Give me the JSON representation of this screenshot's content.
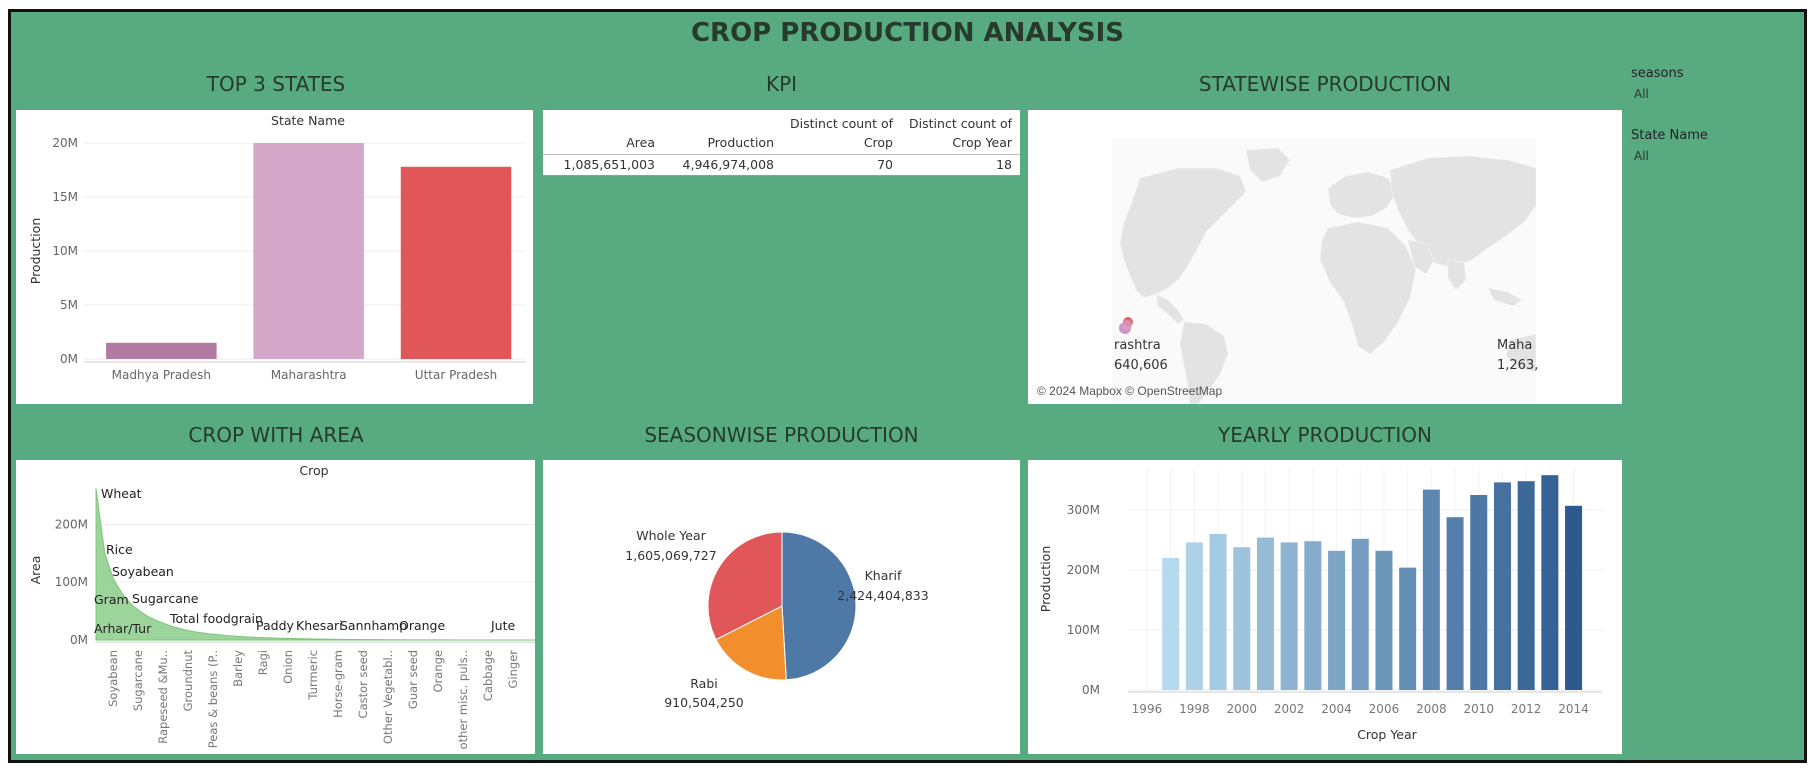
{
  "dashboard": {
    "title": "CROP PRODUCTION ANALYSIS",
    "sections": {
      "top_states": "TOP 3 STATES",
      "kpi": "KPI",
      "statewise": "STATEWISE PRODUCTION",
      "crop_area": "CROP WITH AREA",
      "seasonwise": "SEASONWISE PRODUCTION",
      "yearly": "YEARLY PRODUCTION"
    }
  },
  "filters": {
    "seasons": {
      "label": "seasons",
      "value": "All"
    },
    "state_name": {
      "label": "State Name",
      "value": "All"
    }
  },
  "kpi": {
    "headers": [
      "Area",
      "Production",
      "Distinct count of Crop",
      "Distinct count of Crop Year"
    ],
    "header_lines": [
      [
        "",
        "Area"
      ],
      [
        "",
        "Production"
      ],
      [
        "Distinct count of",
        "Crop"
      ],
      [
        "Distinct count of",
        "Crop Year"
      ]
    ],
    "values": [
      "1,085,651,003",
      "4,946,974,008",
      "70",
      "18"
    ]
  },
  "map": {
    "labels": [
      {
        "name": "rashtra",
        "value": "640,606"
      },
      {
        "name": "Maha",
        "value": "1,263,"
      }
    ],
    "attribution": "© 2024 Mapbox © OpenStreetMap",
    "colors": {
      "land": "#e3e3e3",
      "water": "#ffffff",
      "marker1": "#d9534f",
      "marker2": "#c68ac0"
    }
  },
  "chart_data": [
    {
      "type": "bar",
      "title": "State Name",
      "ylabel": "Production",
      "categories": [
        "Madhya Pradesh",
        "Maharashtra",
        "Uttar Pradesh"
      ],
      "values": [
        1.5,
        20.0,
        17.8
      ],
      "unit": "M",
      "ylim": [
        0,
        20
      ],
      "yticks": [
        "0M",
        "5M",
        "10M",
        "15M",
        "20M"
      ],
      "colors": [
        "#b07aa1",
        "#d4a6c8",
        "#e15759"
      ],
      "grid": true
    },
    {
      "type": "area",
      "title": "Crop",
      "ylabel": "Area",
      "ylim": [
        0,
        270
      ],
      "yticks": [
        "0M",
        "100M",
        "200M"
      ],
      "x_tick_labels": [
        "Soyabean",
        "Sugarcane",
        "Rapeseed &Mu..",
        "Groundnut",
        "Peas & beans (P..",
        "Barley",
        "Ragi",
        "Onion",
        "Turmeric",
        "Horse-gram",
        "Castor seed",
        "Other Vegetabl..",
        "Guar seed",
        "Orange",
        "other misc. puls..",
        "Cabbage",
        "Ginger"
      ],
      "annotations": [
        "Wheat",
        "Rice",
        "Soyabean",
        "Gram",
        "Sugarcane",
        "Arhar/Tur",
        "Total foodgrain",
        "Paddy",
        "Khesari",
        "Sannhamp",
        "Orange",
        "Jute"
      ],
      "values": [
        262,
        150,
        105,
        80,
        62,
        50,
        40,
        33,
        27,
        22,
        18,
        15,
        12.5,
        10.5,
        9,
        7.5,
        6.5,
        5.5,
        4.8,
        4.2,
        3.6,
        3.1,
        2.7,
        2.3,
        2.0,
        1.7,
        1.5,
        1.3,
        1.1,
        0.9,
        0.8,
        0.7,
        0.6,
        0.5,
        0.4,
        0.35,
        0.3,
        0.25,
        0.2,
        0.15,
        0.12,
        0.1,
        0.08,
        0.06,
        0.05,
        0.04,
        0.03,
        0.02,
        0.02,
        0.01
      ],
      "color": "#7cc67a"
    },
    {
      "type": "pie",
      "categories": [
        "Kharif",
        "Rabi",
        "Whole Year"
      ],
      "labels": [
        "2,424,404,833",
        "910,504,250",
        "1,605,069,727"
      ],
      "values": [
        2424404833,
        910504250,
        1605069727
      ],
      "colors": [
        "#4e79a7",
        "#f28e2b",
        "#e15759"
      ]
    },
    {
      "type": "bar",
      "xlabel": "Crop Year",
      "ylabel": "Production",
      "categories": [
        1997,
        1998,
        1999,
        2000,
        2001,
        2002,
        2003,
        2004,
        2005,
        2006,
        2007,
        2008,
        2009,
        2010,
        2011,
        2012,
        2013,
        2014
      ],
      "x_ticks": [
        "1996",
        "1998",
        "2000",
        "2002",
        "2004",
        "2006",
        "2008",
        "2010",
        "2012",
        "2014"
      ],
      "values": [
        220,
        246,
        260,
        238,
        254,
        246,
        248,
        232,
        252,
        232,
        204,
        334,
        288,
        325,
        346,
        348,
        358,
        307
      ],
      "unit": "M",
      "ylim": [
        0,
        370
      ],
      "yticks": [
        "0M",
        "100M",
        "200M",
        "300M"
      ],
      "color_scale": [
        "#b5d9ee",
        "#2d5a8e"
      ],
      "grid": true
    }
  ]
}
